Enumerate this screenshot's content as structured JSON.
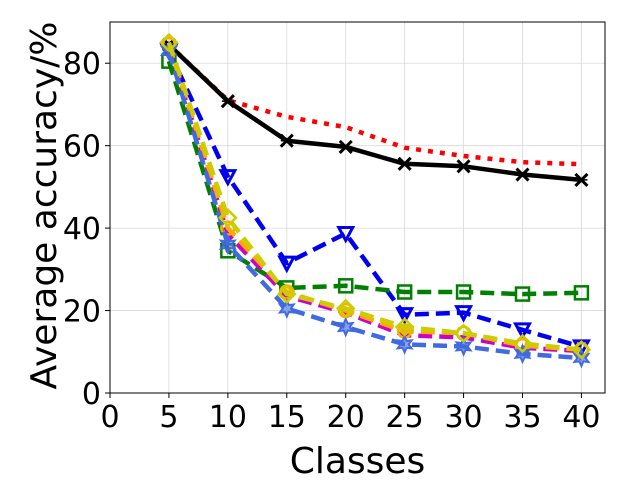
{
  "chart_data": {
    "type": "line",
    "title": "",
    "xlabel": "Classes",
    "ylabel": "Average accuracy/%",
    "xlim": [
      0,
      42
    ],
    "ylim": [
      0,
      90
    ],
    "x_ticks": [
      0,
      5,
      10,
      15,
      20,
      25,
      30,
      35,
      40
    ],
    "y_ticks": [
      0,
      20,
      40,
      60,
      80
    ],
    "grid": true,
    "legend": "none",
    "x": [
      5,
      10,
      15,
      20,
      25,
      30,
      35,
      40
    ],
    "series": [
      {
        "color": "#ff0000",
        "dash": "dotted",
        "marker": "none",
        "values": [
          84.5,
          71.0,
          67.0,
          64.5,
          59.5,
          57.5,
          56.0,
          55.5
        ]
      },
      {
        "color": "#000000",
        "dash": "solid",
        "marker": "x",
        "values": [
          84.5,
          70.8,
          61.2,
          59.7,
          55.6,
          55.0,
          53.0,
          51.7
        ]
      },
      {
        "color": "#0000ee",
        "dash": "dashed",
        "marker": "triangle-down",
        "values": [
          83.0,
          52.5,
          31.5,
          38.7,
          19.0,
          19.5,
          15.3,
          11.2
        ]
      },
      {
        "color": "#008000",
        "dash": "dashed",
        "marker": "square",
        "values": [
          80.5,
          34.5,
          25.5,
          26.0,
          24.5,
          24.5,
          24.0,
          24.3
        ]
      },
      {
        "color": "#cc00cc",
        "dash": "dashed",
        "marker": "none",
        "values": [
          84.0,
          38.5,
          23.5,
          19.5,
          14.0,
          13.5,
          11.0,
          10.2
        ]
      },
      {
        "color": "#ffaa00",
        "dash": "dashed",
        "marker": "circle",
        "values": [
          84.5,
          40.0,
          24.5,
          20.0,
          15.0,
          14.5,
          11.5,
          10.5
        ]
      },
      {
        "color": "#4169e1",
        "dash": "dashed",
        "marker": "star",
        "values": [
          83.0,
          36.0,
          20.5,
          16.0,
          11.8,
          11.3,
          9.5,
          8.5
        ]
      },
      {
        "color": "#cccc00",
        "dash": "dashed",
        "marker": "diamond",
        "values": [
          85.0,
          42.5,
          24.0,
          20.5,
          16.0,
          14.5,
          12.0,
          10.5
        ]
      }
    ]
  }
}
